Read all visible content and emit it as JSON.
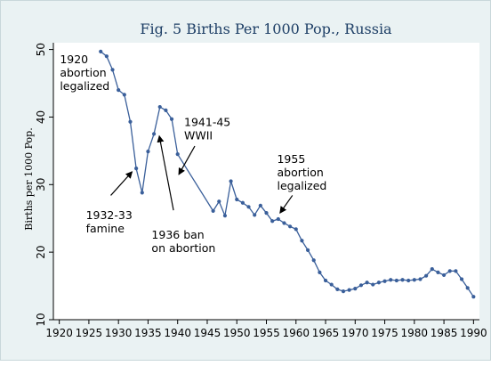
{
  "chart_data": {
    "type": "line",
    "title": "Fig. 5  Births Per 1000 Pop., Russia",
    "xlabel": "",
    "ylabel": "Births per 1000 Pop.",
    "xlim": [
      1919,
      1991
    ],
    "ylim": [
      10,
      51
    ],
    "x_ticks": [
      1920,
      1925,
      1930,
      1935,
      1940,
      1945,
      1950,
      1955,
      1960,
      1965,
      1970,
      1975,
      1980,
      1985,
      1990
    ],
    "y_ticks": [
      10,
      20,
      30,
      40,
      50
    ],
    "grid": false,
    "series": [
      {
        "name": "",
        "color": "#3a5f9a",
        "points": [
          [
            1927,
            49.7
          ],
          [
            1928,
            49.0
          ],
          [
            1929,
            47.0
          ],
          [
            1930,
            44.0
          ],
          [
            1931,
            43.3
          ],
          [
            1932,
            39.3
          ],
          [
            1933,
            32.4
          ],
          [
            1934,
            28.8
          ],
          [
            1935,
            34.9
          ],
          [
            1936,
            37.5
          ],
          [
            1937,
            41.5
          ],
          [
            1938,
            41.0
          ],
          [
            1939,
            39.7
          ],
          [
            1940,
            34.5
          ],
          [
            1946,
            26.1
          ],
          [
            1947,
            27.5
          ],
          [
            1948,
            25.4
          ],
          [
            1949,
            30.5
          ],
          [
            1950,
            27.8
          ],
          [
            1951,
            27.3
          ],
          [
            1952,
            26.7
          ],
          [
            1953,
            25.5
          ],
          [
            1954,
            26.9
          ],
          [
            1955,
            25.8
          ],
          [
            1956,
            24.6
          ],
          [
            1957,
            24.9
          ],
          [
            1958,
            24.3
          ],
          [
            1959,
            23.8
          ],
          [
            1960,
            23.4
          ],
          [
            1961,
            21.7
          ],
          [
            1962,
            20.3
          ],
          [
            1963,
            18.8
          ],
          [
            1964,
            17.0
          ],
          [
            1965,
            15.8
          ],
          [
            1966,
            15.2
          ],
          [
            1967,
            14.5
          ],
          [
            1968,
            14.2
          ],
          [
            1969,
            14.4
          ],
          [
            1970,
            14.6
          ],
          [
            1971,
            15.1
          ],
          [
            1972,
            15.5
          ],
          [
            1973,
            15.2
          ],
          [
            1974,
            15.5
          ],
          [
            1975,
            15.7
          ],
          [
            1976,
            15.9
          ],
          [
            1977,
            15.8
          ],
          [
            1978,
            15.9
          ],
          [
            1979,
            15.8
          ],
          [
            1980,
            15.9
          ],
          [
            1981,
            16.0
          ],
          [
            1982,
            16.5
          ],
          [
            1983,
            17.5
          ],
          [
            1984,
            17.0
          ],
          [
            1985,
            16.6
          ],
          [
            1986,
            17.2
          ],
          [
            1987,
            17.2
          ],
          [
            1988,
            16.0
          ],
          [
            1989,
            14.7
          ],
          [
            1990,
            13.4
          ]
        ]
      }
    ],
    "annotations": [
      {
        "lines": [
          "1920",
          "abortion",
          "legalized"
        ],
        "text_at": [
          1920.1,
          48.0
        ],
        "arrow": null
      },
      {
        "lines": [
          "1932-33",
          "famine"
        ],
        "text_at": [
          1924.5,
          24.9
        ],
        "arrow": {
          "from": [
            1928.7,
            28.4
          ],
          "to": [
            1932.3,
            31.9
          ]
        }
      },
      {
        "lines": [
          "1936 ban",
          "on abortion"
        ],
        "text_at": [
          1935.6,
          22.0
        ],
        "arrow": {
          "from": [
            1939.3,
            26.2
          ],
          "to": [
            1936.9,
            37.2
          ]
        }
      },
      {
        "lines": [
          "1941-45",
          "WWII"
        ],
        "text_at": [
          1941.1,
          38.7
        ],
        "arrow": {
          "from": [
            1942.9,
            35.7
          ],
          "to": [
            1940.2,
            31.5
          ]
        }
      },
      {
        "lines": [
          "1955",
          "abortion",
          "legalized"
        ],
        "text_at": [
          1956.8,
          33.2
        ],
        "arrow": {
          "from": [
            1959.4,
            28.4
          ],
          "to": [
            1957.3,
            25.8
          ]
        }
      }
    ]
  }
}
